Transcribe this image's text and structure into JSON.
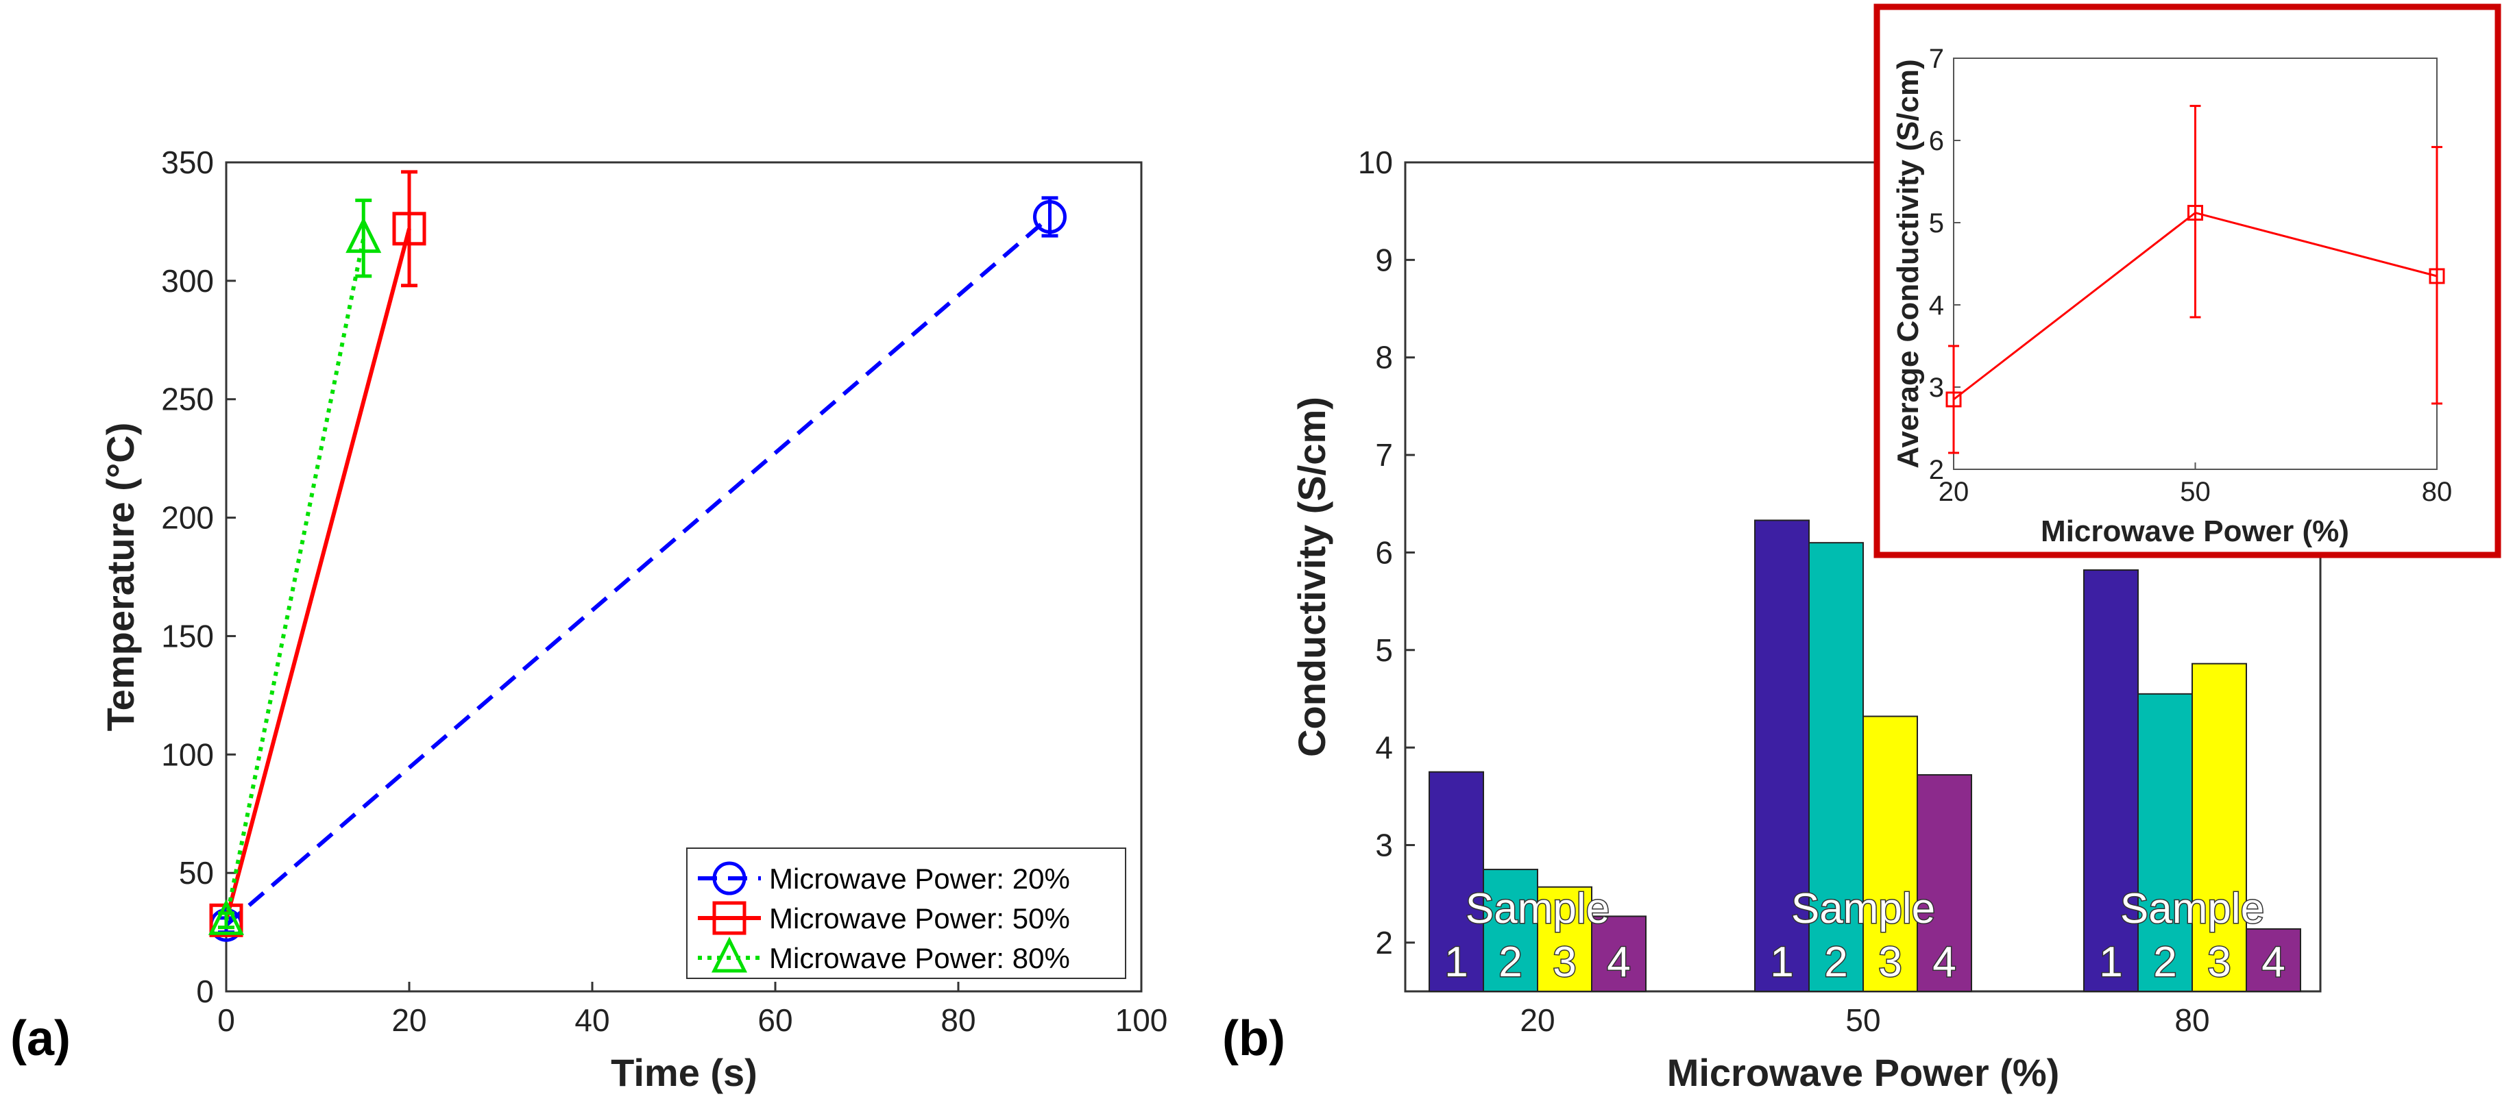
{
  "panels": {
    "a": "(a)",
    "b": "(b)"
  },
  "chart_data": [
    {
      "type": "line",
      "panel": "(a)",
      "xlabel": "Time (s)",
      "ylabel": "Temperature (°C)",
      "xlim": [
        0,
        100
      ],
      "ylim": [
        0,
        350
      ],
      "xticks": [
        0,
        20,
        40,
        60,
        80,
        100
      ],
      "yticks": [
        0,
        50,
        100,
        150,
        200,
        250,
        300,
        350
      ],
      "legend_position": "bottom-right",
      "series": [
        {
          "name": "Microwave Power: 20%",
          "color": "#0000ff",
          "dash": "dashed",
          "marker": "circle",
          "x": [
            0,
            90
          ],
          "y": [
            28,
            327
          ],
          "yerr": [
            3,
            8
          ]
        },
        {
          "name": "Microwave Power: 50%",
          "color": "#ff0000",
          "dash": "solid",
          "marker": "square",
          "x": [
            0,
            20
          ],
          "y": [
            30,
            322
          ],
          "yerr": [
            3,
            24
          ]
        },
        {
          "name": "Microwave Power: 80%",
          "color": "#00e000",
          "dash": "dotted",
          "marker": "triangle",
          "x": [
            0,
            15
          ],
          "y": [
            30,
            318
          ],
          "yerr": [
            3,
            16
          ]
        }
      ]
    },
    {
      "type": "bar",
      "panel": "(b)",
      "xlabel": "Microwave Power (%)",
      "ylabel": "Conductivity (S/cm)",
      "ylim": [
        1.5,
        10
      ],
      "yticks": [
        2,
        3,
        4,
        5,
        6,
        7,
        8,
        9,
        10
      ],
      "categories": [
        "20",
        "50",
        "80"
      ],
      "series": [
        {
          "name": "1",
          "color": "#3d1fa3",
          "values": [
            3.75,
            6.33,
            5.82
          ]
        },
        {
          "name": "2",
          "color": "#00bdb0",
          "values": [
            2.75,
            6.1,
            4.55
          ]
        },
        {
          "name": "3",
          "color": "#ffff00",
          "values": [
            2.57,
            4.32,
            4.86
          ]
        },
        {
          "name": "4",
          "color": "#8c2a8c",
          "values": [
            2.27,
            3.72,
            2.14
          ]
        }
      ],
      "overlay_label": "Sample"
    },
    {
      "type": "line",
      "panel": "inset",
      "xlabel": "Microwave Power (%)",
      "ylabel": "Average Conductivity (S/cm)",
      "xlim": [
        20,
        80
      ],
      "ylim": [
        2,
        7
      ],
      "xticks": [
        20,
        50,
        80
      ],
      "yticks": [
        2,
        3,
        4,
        5,
        6,
        7
      ],
      "color": "#ff0000",
      "frame_color": "#cc0000",
      "marker": "square",
      "x": [
        20,
        50,
        80
      ],
      "y": [
        2.85,
        5.12,
        4.35
      ],
      "yerr_low": [
        2.2,
        3.85,
        2.8
      ],
      "yerr_high": [
        3.5,
        6.42,
        5.92
      ]
    }
  ]
}
